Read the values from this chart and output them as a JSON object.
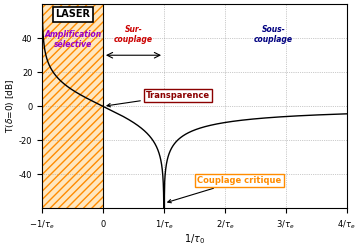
{
  "xlim": [
    -1,
    4
  ],
  "ylim": [
    -60,
    60
  ],
  "yticks": [
    -40,
    -20,
    0,
    20,
    40
  ],
  "xtick_vals": [
    -1,
    0,
    1,
    2,
    3,
    4
  ],
  "hatch_color": "#FF8C00",
  "hatch_face": "#FFD080",
  "curve_color": "#000000",
  "label_amplif_color": "#9900CC",
  "label_sur_color": "#CC0000",
  "label_sous_color": "#000080",
  "transparence_color": "#8B0000",
  "couplage_color": "#FF8C00",
  "background_color": "#FFFFFF",
  "grid_color": "#999999"
}
